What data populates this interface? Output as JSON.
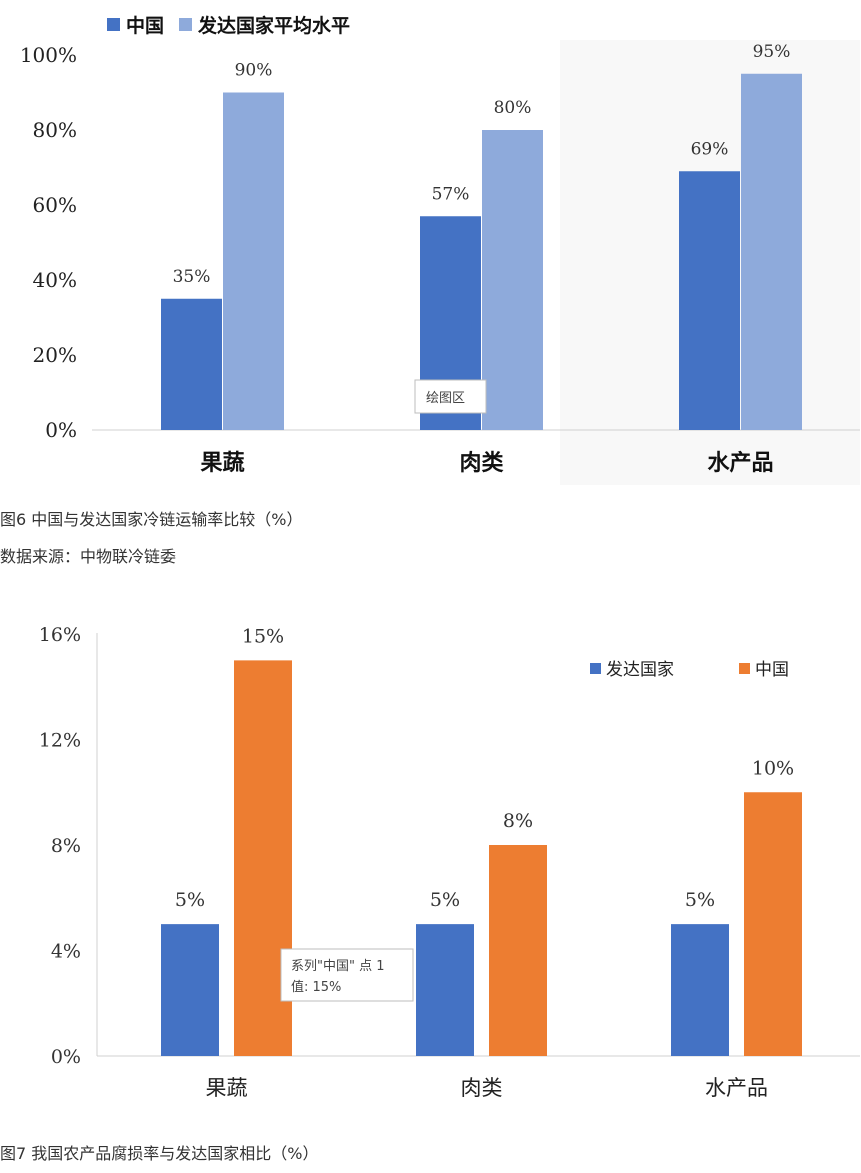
{
  "chart_data": [
    {
      "type": "bar",
      "categories": [
        "果蔬",
        "肉类",
        "水产品"
      ],
      "series": [
        {
          "name": "中国",
          "values": [
            35,
            57,
            69
          ],
          "color": "#4472c4"
        },
        {
          "name": "发达国家平均水平",
          "values": [
            90,
            80,
            95
          ],
          "color": "#8eaadb"
        }
      ],
      "data_labels": [
        [
          "35%",
          "57%",
          "69%"
        ],
        [
          "90%",
          "80%",
          "95%"
        ]
      ],
      "ylim": [
        0,
        100
      ],
      "yticks": [
        "0%",
        "20%",
        "40%",
        "60%",
        "80%",
        "100%"
      ],
      "legend": "top-left",
      "grid": false,
      "tooltip": "绘图区",
      "caption": "图6 中国与发达国家冷链运输率比较（%）",
      "source": "数据来源：中物联冷链委"
    },
    {
      "type": "bar",
      "categories": [
        "果蔬",
        "肉类",
        "水产品"
      ],
      "series": [
        {
          "name": "发达国家",
          "values": [
            5,
            5,
            5
          ],
          "color": "#4472c4"
        },
        {
          "name": "中国",
          "values": [
            15,
            8,
            10
          ],
          "color": "#ed7d31"
        }
      ],
      "data_labels": [
        [
          "5%",
          "5%",
          "5%"
        ],
        [
          "15%",
          "8%",
          "10%"
        ]
      ],
      "ylim": [
        0,
        16
      ],
      "yticks": [
        "0%",
        "4%",
        "8%",
        "12%",
        "16%"
      ],
      "legend": "top-right",
      "grid": false,
      "tooltip": [
        "系列\"中国\" 点 1",
        "值: 15%"
      ],
      "caption": "图7 我国农产品腐损率与发达国家相比（%）"
    }
  ]
}
